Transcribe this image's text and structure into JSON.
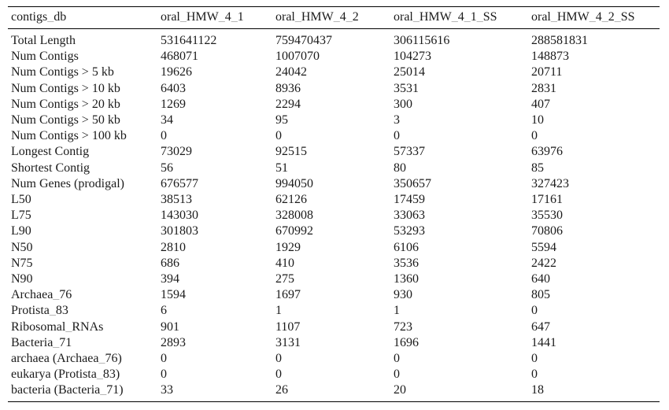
{
  "table": {
    "columns": [
      "contigs_db",
      "oral_HMW_4_1",
      "oral_HMW_4_2",
      "oral_HMW_4_1_SS",
      "oral_HMW_4_2_SS"
    ],
    "rows": [
      {
        "label": "Total Length",
        "values": [
          "531641122",
          "759470437",
          "306115616",
          "288581831"
        ]
      },
      {
        "label": "Num Contigs",
        "values": [
          "468071",
          "1007070",
          "104273",
          "148873"
        ]
      },
      {
        "label": "Num Contigs > 5 kb",
        "values": [
          "19626",
          "24042",
          "25014",
          "20711"
        ]
      },
      {
        "label": "Num Contigs > 10 kb",
        "values": [
          "6403",
          "8936",
          "3531",
          "2831"
        ]
      },
      {
        "label": "Num Contigs > 20 kb",
        "values": [
          "1269",
          "2294",
          "300",
          "407"
        ]
      },
      {
        "label": "Num Contigs > 50 kb",
        "values": [
          "34",
          "95",
          "3",
          "10"
        ]
      },
      {
        "label": "Num Contigs > 100 kb",
        "values": [
          "0",
          "0",
          "0",
          "0"
        ]
      },
      {
        "label": "Longest Contig",
        "values": [
          "73029",
          "92515",
          "57337",
          "63976"
        ]
      },
      {
        "label": "Shortest Contig",
        "values": [
          "56",
          "51",
          "80",
          "85"
        ]
      },
      {
        "label": "Num Genes (prodigal)",
        "values": [
          "676577",
          "994050",
          "350657",
          "327423"
        ]
      },
      {
        "label": "L50",
        "values": [
          "38513",
          "62126",
          "17459",
          "17161"
        ]
      },
      {
        "label": "L75",
        "values": [
          "143030",
          "328008",
          "33063",
          "35530"
        ]
      },
      {
        "label": "L90",
        "values": [
          "301803",
          "670992",
          "53293",
          "70806"
        ]
      },
      {
        "label": "N50",
        "values": [
          "2810",
          "1929",
          "6106",
          "5594"
        ]
      },
      {
        "label": "N75",
        "values": [
          "686",
          "410",
          "3536",
          "2422"
        ]
      },
      {
        "label": "N90",
        "values": [
          "394",
          "275",
          "1360",
          "640"
        ]
      },
      {
        "label": "Archaea_76",
        "values": [
          "1594",
          "1697",
          "930",
          "805"
        ]
      },
      {
        "label": "Protista_83",
        "values": [
          "6",
          "1",
          "1",
          "0"
        ]
      },
      {
        "label": "Ribosomal_RNAs",
        "values": [
          "901",
          "1107",
          "723",
          "647"
        ]
      },
      {
        "label": "Bacteria_71",
        "values": [
          "2893",
          "3131",
          "1696",
          "1441"
        ]
      },
      {
        "label": "archaea (Archaea_76)",
        "values": [
          "0",
          "0",
          "0",
          "0"
        ]
      },
      {
        "label": "eukarya (Protista_83)",
        "values": [
          "0",
          "0",
          "0",
          "0"
        ]
      },
      {
        "label": "bacteria (Bacteria_71)",
        "values": [
          "33",
          "26",
          "20",
          "18"
        ]
      }
    ]
  },
  "colors": {
    "background": "#ffffff",
    "text": "#1b1b1b",
    "rule": "#000000",
    "underscore_tint": "#a6a6a6"
  }
}
